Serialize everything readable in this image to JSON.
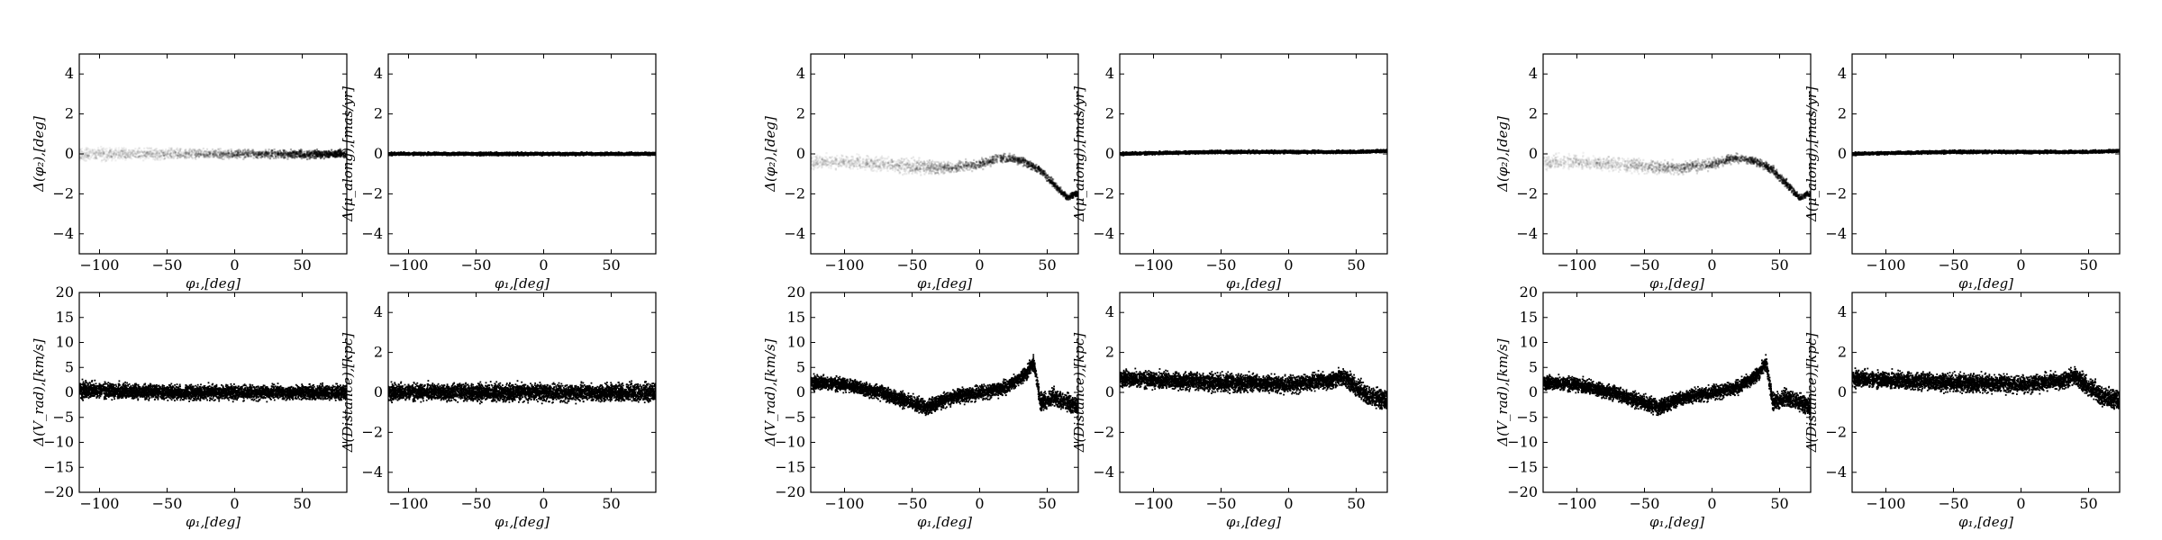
{
  "figure": {
    "xlabel": "φ₁,[deg]",
    "ylabels": {
      "phi2": "Δ(φ₂),[deg]",
      "pm": "Δ(μ_along),[mas/yr]",
      "vrad": "Δ(V_rad),[km/s]",
      "dist": "Δ(Distance),[kpc]"
    }
  },
  "chart_data": [
    {
      "id": "g1-phi2",
      "type": "scatter",
      "group": 1,
      "quantity": "phi2",
      "xlim": [
        -115,
        83
      ],
      "ylim": [
        -5,
        5
      ],
      "xticks": [
        -100,
        -50,
        0,
        50
      ],
      "yticks": [
        -4,
        -2,
        0,
        2,
        4
      ],
      "xlabel": "φ₁,[deg]",
      "ylabel": "Δ(φ₂),[deg]",
      "grid": false,
      "x": [
        -115,
        -100,
        -80,
        -60,
        -40,
        -20,
        0,
        20,
        40,
        60,
        83
      ],
      "y": [
        0,
        0,
        0,
        0,
        0,
        0,
        0,
        0,
        0,
        0,
        0
      ],
      "spread": [
        0.5,
        0.5,
        0.4,
        0.4,
        0.4,
        0.3,
        0.3,
        0.3,
        0.3,
        0.3,
        0.3
      ],
      "style": "density"
    },
    {
      "id": "g1-pm",
      "type": "scatter",
      "group": 1,
      "quantity": "pm",
      "xlim": [
        -115,
        83
      ],
      "ylim": [
        -5,
        5
      ],
      "xticks": [
        -100,
        -50,
        0,
        50
      ],
      "yticks": [
        -4,
        -2,
        0,
        2,
        4
      ],
      "xlabel": "φ₁,[deg]",
      "ylabel": "Δ(μ_along),[mas/yr]",
      "grid": false,
      "x": [
        -115,
        -60,
        0,
        40,
        83
      ],
      "y": [
        0,
        0,
        0,
        0,
        0
      ],
      "spread": [
        0.1,
        0.1,
        0.1,
        0.1,
        0.1
      ],
      "style": "dense"
    },
    {
      "id": "g1-vrad",
      "type": "scatter",
      "group": 1,
      "quantity": "vrad",
      "xlim": [
        -115,
        83
      ],
      "ylim": [
        -20,
        20
      ],
      "xticks": [
        -100,
        -50,
        0,
        50
      ],
      "yticks": [
        -20,
        -15,
        -10,
        -5,
        0,
        5,
        10,
        15,
        20
      ],
      "xlabel": "φ₁,[deg]",
      "ylabel": "Δ(V_rad),[km/s]",
      "grid": false,
      "x": [
        -115,
        -100,
        -50,
        0,
        50,
        83
      ],
      "y": [
        0.5,
        0.3,
        0,
        0,
        0,
        0
      ],
      "spread": [
        2.5,
        2.2,
        2,
        2,
        2,
        2.2
      ],
      "style": "dense"
    },
    {
      "id": "g1-dist",
      "type": "scatter",
      "group": 1,
      "quantity": "dist",
      "xlim": [
        -115,
        83
      ],
      "ylim": [
        -5,
        5
      ],
      "xticks": [
        -100,
        -50,
        0,
        50
      ],
      "yticks": [
        -4,
        -2,
        0,
        2,
        4
      ],
      "xlabel": "φ₁,[deg]",
      "ylabel": "Δ(Distance),[kpc]",
      "grid": false,
      "x": [
        -115,
        -50,
        0,
        50,
        83
      ],
      "y": [
        0,
        0,
        0,
        0,
        0
      ],
      "spread": [
        0.6,
        0.6,
        0.6,
        0.6,
        0.7
      ],
      "style": "dense"
    },
    {
      "id": "g2-phi2",
      "type": "scatter",
      "group": 2,
      "quantity": "phi2",
      "xlim": [
        -125,
        73
      ],
      "ylim": [
        -5,
        5
      ],
      "xticks": [
        -100,
        -50,
        0,
        50
      ],
      "yticks": [
        -4,
        -2,
        0,
        2,
        4
      ],
      "xlabel": "φ₁,[deg]",
      "ylabel": "Δ(φ₂),[deg]",
      "grid": false,
      "x": [
        -125,
        -100,
        -75,
        -50,
        -25,
        0,
        15,
        30,
        45,
        55,
        65,
        70
      ],
      "y": [
        -0.4,
        -0.4,
        -0.5,
        -0.6,
        -0.7,
        -0.5,
        -0.2,
        -0.3,
        -0.8,
        -1.5,
        -2.2,
        -2.0
      ],
      "spread": [
        0.5,
        0.5,
        0.5,
        0.5,
        0.4,
        0.4,
        0.3,
        0.3,
        0.3,
        0.3,
        0.2,
        0.2
      ],
      "style": "density"
    },
    {
      "id": "g2-pm",
      "type": "scatter",
      "group": 2,
      "quantity": "pm",
      "xlim": [
        -125,
        73
      ],
      "ylim": [
        -5,
        5
      ],
      "xticks": [
        -100,
        -50,
        0,
        50
      ],
      "yticks": [
        -4,
        -2,
        0,
        2,
        4
      ],
      "xlabel": "φ₁,[deg]",
      "ylabel": "Δ(μ_along),[mas/yr]",
      "grid": false,
      "x": [
        -125,
        -50,
        0,
        50,
        73
      ],
      "y": [
        0,
        0.1,
        0.1,
        0.1,
        0.15
      ],
      "spread": [
        0.1,
        0.1,
        0.1,
        0.1,
        0.1
      ],
      "style": "dense"
    },
    {
      "id": "g2-vrad",
      "type": "scatter",
      "group": 2,
      "quantity": "vrad",
      "xlim": [
        -125,
        73
      ],
      "ylim": [
        -20,
        20
      ],
      "xticks": [
        -100,
        -50,
        0,
        50
      ],
      "yticks": [
        -20,
        -15,
        -10,
        -5,
        0,
        5,
        10,
        15,
        20
      ],
      "xlabel": "φ₁,[deg]",
      "ylabel": "Δ(V_rad),[km/s]",
      "grid": false,
      "x": [
        -125,
        -100,
        -75,
        -50,
        -40,
        -20,
        0,
        20,
        35,
        40,
        45,
        55,
        65,
        73
      ],
      "y": [
        2,
        1.5,
        0,
        -2,
        -3,
        -1,
        0,
        1,
        4,
        6,
        -2,
        -1,
        -2,
        -3
      ],
      "spread": [
        2,
        2,
        2,
        2,
        2,
        2,
        2,
        2,
        2,
        2,
        2.5,
        2.5,
        2.5,
        2.5
      ],
      "style": "dense"
    },
    {
      "id": "g2-dist",
      "type": "scatter",
      "group": 2,
      "quantity": "dist",
      "xlim": [
        -125,
        73
      ],
      "ylim": [
        -5,
        5
      ],
      "xticks": [
        -100,
        -50,
        0,
        50
      ],
      "yticks": [
        -4,
        -2,
        0,
        2,
        4
      ],
      "xlabel": "φ₁,[deg]",
      "ylabel": "Δ(Distance),[kpc]",
      "grid": false,
      "x": [
        -125,
        -100,
        -50,
        0,
        30,
        40,
        50,
        60,
        73
      ],
      "y": [
        0.7,
        0.6,
        0.5,
        0.4,
        0.6,
        0.8,
        0.3,
        -0.2,
        -0.4
      ],
      "spread": [
        0.6,
        0.6,
        0.6,
        0.6,
        0.6,
        0.6,
        0.7,
        0.7,
        0.7
      ],
      "style": "dense"
    },
    {
      "id": "g3-phi2",
      "type": "scatter",
      "group": 3,
      "quantity": "phi2",
      "xlim": [
        -125,
        73
      ],
      "ylim": [
        -5,
        5
      ],
      "xticks": [
        -100,
        -50,
        0,
        50
      ],
      "yticks": [
        -4,
        -2,
        0,
        2,
        4
      ],
      "xlabel": "φ₁,[deg]",
      "ylabel": "Δ(φ₂),[deg]",
      "grid": false,
      "x": [
        -125,
        -100,
        -75,
        -50,
        -25,
        0,
        15,
        30,
        45,
        55,
        65,
        70
      ],
      "y": [
        -0.4,
        -0.4,
        -0.5,
        -0.6,
        -0.7,
        -0.5,
        -0.2,
        -0.3,
        -0.8,
        -1.5,
        -2.2,
        -2.0
      ],
      "spread": [
        0.5,
        0.5,
        0.5,
        0.5,
        0.4,
        0.4,
        0.3,
        0.3,
        0.3,
        0.3,
        0.2,
        0.2
      ],
      "style": "density"
    },
    {
      "id": "g3-pm",
      "type": "scatter",
      "group": 3,
      "quantity": "pm",
      "xlim": [
        -125,
        73
      ],
      "ylim": [
        -5,
        5
      ],
      "xticks": [
        -100,
        -50,
        0,
        50
      ],
      "yticks": [
        -4,
        -2,
        0,
        2,
        4
      ],
      "xlabel": "φ₁,[deg]",
      "ylabel": "Δ(μ_along),[mas/yr]",
      "grid": false,
      "x": [
        -125,
        -50,
        0,
        50,
        73
      ],
      "y": [
        0,
        0.1,
        0.1,
        0.1,
        0.15
      ],
      "spread": [
        0.1,
        0.1,
        0.1,
        0.1,
        0.1
      ],
      "style": "dense"
    },
    {
      "id": "g3-vrad",
      "type": "scatter",
      "group": 3,
      "quantity": "vrad",
      "xlim": [
        -125,
        73
      ],
      "ylim": [
        -20,
        20
      ],
      "xticks": [
        -100,
        -50,
        0,
        50
      ],
      "yticks": [
        -20,
        -15,
        -10,
        -5,
        0,
        5,
        10,
        15,
        20
      ],
      "xlabel": "φ₁,[deg]",
      "ylabel": "Δ(V_rad),[km/s]",
      "grid": false,
      "x": [
        -125,
        -100,
        -75,
        -50,
        -40,
        -20,
        0,
        20,
        35,
        40,
        45,
        55,
        65,
        73
      ],
      "y": [
        2,
        1.5,
        0,
        -2,
        -3,
        -1,
        0,
        1,
        4,
        6,
        -2,
        -1,
        -2,
        -3
      ],
      "spread": [
        2,
        2,
        2,
        2,
        2,
        2,
        2,
        2,
        2,
        2,
        2.5,
        2.5,
        2.5,
        2.5
      ],
      "style": "dense"
    },
    {
      "id": "g3-dist",
      "type": "scatter",
      "group": 3,
      "quantity": "dist",
      "xlim": [
        -125,
        73
      ],
      "ylim": [
        -5,
        5
      ],
      "xticks": [
        -100,
        -50,
        0,
        50
      ],
      "yticks": [
        -4,
        -2,
        0,
        2,
        4
      ],
      "xlabel": "φ₁,[deg]",
      "ylabel": "Δ(Distance),[kpc]",
      "grid": false,
      "x": [
        -125,
        -100,
        -50,
        0,
        30,
        40,
        50,
        60,
        73
      ],
      "y": [
        0.7,
        0.6,
        0.5,
        0.4,
        0.6,
        0.8,
        0.3,
        -0.2,
        -0.4
      ],
      "spread": [
        0.6,
        0.6,
        0.6,
        0.6,
        0.6,
        0.6,
        0.7,
        0.7,
        0.7
      ],
      "style": "dense"
    }
  ]
}
